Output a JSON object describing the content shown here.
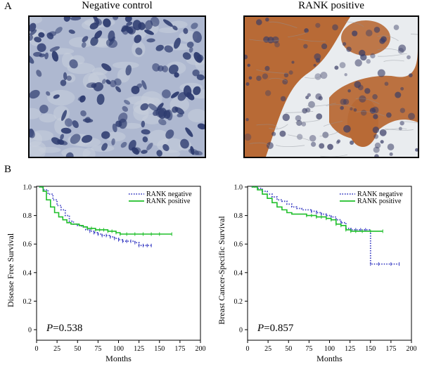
{
  "panel_labels": {
    "a": "A",
    "b": "B"
  },
  "images": [
    {
      "title": "Negative control",
      "stain": "hematoxylin",
      "colors": {
        "bg": "#aeb8d0",
        "nucleus": "#2c3a6e",
        "stroma": "#c9cfdc"
      }
    },
    {
      "title": "RANK  positive",
      "stain": "dab",
      "colors": {
        "bg": "#e9ecef",
        "cell": "#b86a36",
        "nucleus": "#3a3d66",
        "stroma": "#dfe3e8"
      }
    }
  ],
  "chart_data": [
    {
      "type": "line",
      "ylabel": "Disease Free Survival",
      "xlabel": "Months",
      "xlim": [
        0,
        200
      ],
      "ylim": [
        0,
        1.0
      ],
      "xticks": [
        "0",
        "25",
        "50",
        "75",
        "100",
        "125",
        "150",
        "175",
        "200"
      ],
      "yticks": [
        "0",
        "0.2",
        "0.4",
        "0.6",
        "0.8",
        "1.0"
      ],
      "legend": {
        "placement": "top-right",
        "entries": [
          "RANK negative",
          "RANK positive"
        ]
      },
      "annotation": {
        "p_label": "P",
        "p_value": "=0.538"
      },
      "series": [
        {
          "name": "RANK negative",
          "color": "#3b3fc4",
          "style": "dotted",
          "x": [
            3,
            8,
            14,
            20,
            25,
            30,
            35,
            40,
            45,
            50,
            55,
            60,
            65,
            70,
            75,
            80,
            85,
            90,
            95,
            100,
            105,
            110,
            115,
            120,
            125,
            130,
            135,
            140
          ],
          "y": [
            1.0,
            0.98,
            0.95,
            0.91,
            0.87,
            0.84,
            0.8,
            0.76,
            0.74,
            0.73,
            0.72,
            0.7,
            0.69,
            0.68,
            0.67,
            0.66,
            0.66,
            0.65,
            0.64,
            0.63,
            0.62,
            0.62,
            0.62,
            0.61,
            0.59,
            0.59,
            0.59,
            0.59
          ]
        },
        {
          "name": "RANK positive",
          "color": "#1fbf2a",
          "style": "solid",
          "x": [
            3,
            8,
            12,
            17,
            22,
            27,
            32,
            37,
            42,
            47,
            52,
            57,
            62,
            67,
            72,
            77,
            82,
            87,
            92,
            97,
            102,
            110,
            120,
            130,
            140,
            150,
            165
          ],
          "y": [
            1.0,
            0.97,
            0.91,
            0.86,
            0.82,
            0.79,
            0.77,
            0.75,
            0.74,
            0.74,
            0.73,
            0.72,
            0.71,
            0.71,
            0.7,
            0.7,
            0.7,
            0.69,
            0.69,
            0.68,
            0.67,
            0.67,
            0.67,
            0.67,
            0.67,
            0.67,
            0.67
          ]
        }
      ]
    },
    {
      "type": "line",
      "ylabel": "Breast Cancer-Specific Survival",
      "xlabel": "Months",
      "xlim": [
        0,
        200
      ],
      "ylim": [
        0,
        1.0
      ],
      "xticks": [
        "0",
        "25",
        "50",
        "75",
        "100",
        "125",
        "150",
        "175",
        "200"
      ],
      "yticks": [
        "0",
        "0.2",
        "0.4",
        "0.6",
        "0.8",
        "1.0"
      ],
      "legend": {
        "placement": "top-right",
        "entries": [
          "RANK negative",
          "RANK positive"
        ]
      },
      "annotation": {
        "p_label": "P",
        "p_value": "=0.857"
      },
      "series": [
        {
          "name": "RANK negative",
          "color": "#3b3fc4",
          "style": "dotted",
          "x": [
            5,
            12,
            18,
            24,
            30,
            36,
            42,
            48,
            54,
            60,
            66,
            72,
            78,
            84,
            90,
            96,
            102,
            108,
            114,
            120,
            126,
            132,
            138,
            144,
            150,
            160,
            175,
            185
          ],
          "y": [
            1.0,
            0.99,
            0.97,
            0.95,
            0.93,
            0.91,
            0.9,
            0.88,
            0.86,
            0.85,
            0.84,
            0.84,
            0.83,
            0.82,
            0.81,
            0.8,
            0.79,
            0.77,
            0.75,
            0.71,
            0.7,
            0.7,
            0.7,
            0.7,
            0.46,
            0.46,
            0.46,
            0.46
          ]
        },
        {
          "name": "RANK positive",
          "color": "#1fbf2a",
          "style": "solid",
          "x": [
            5,
            12,
            18,
            24,
            30,
            36,
            42,
            48,
            54,
            60,
            66,
            72,
            78,
            84,
            90,
            96,
            102,
            108,
            114,
            120,
            126,
            132,
            140,
            150,
            165
          ],
          "y": [
            1.0,
            0.98,
            0.95,
            0.92,
            0.89,
            0.86,
            0.84,
            0.82,
            0.81,
            0.81,
            0.81,
            0.8,
            0.8,
            0.79,
            0.79,
            0.78,
            0.77,
            0.74,
            0.73,
            0.7,
            0.69,
            0.69,
            0.69,
            0.69,
            0.69
          ]
        }
      ]
    }
  ]
}
